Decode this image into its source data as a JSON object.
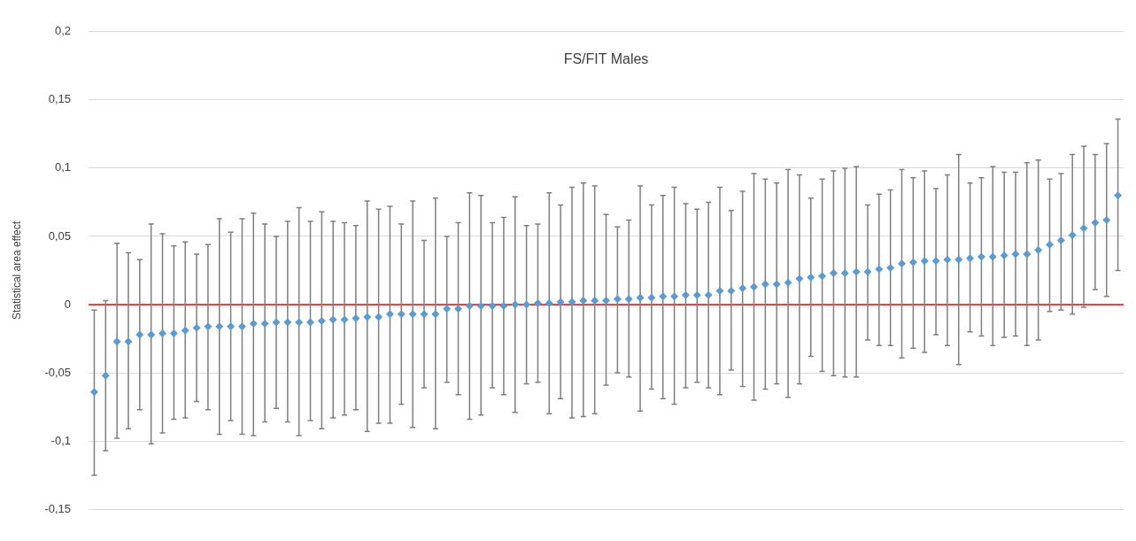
{
  "chart_data": {
    "type": "scatter",
    "title": "FS/FIT Males",
    "ylabel": "Statistical area effect",
    "categories": [
      null,
      null,
      null,
      null,
      null,
      null,
      null,
      null,
      null,
      null,
      null,
      null,
      null,
      null,
      null,
      null,
      null,
      null,
      null,
      null,
      null,
      null,
      null,
      null,
      null,
      null,
      null,
      null,
      null,
      null,
      null,
      null,
      null,
      null,
      null,
      null,
      null,
      null,
      null,
      null,
      null,
      null,
      null,
      null,
      null,
      null,
      null,
      null,
      null,
      null,
      null,
      null,
      null,
      null,
      null,
      null,
      null,
      null,
      null,
      null,
      null,
      null,
      null,
      null,
      null,
      null,
      null,
      null,
      null,
      null,
      null,
      null,
      null,
      null,
      null,
      null,
      null,
      null,
      null,
      null,
      null,
      null,
      null,
      null,
      null,
      null,
      null,
      null,
      null,
      null,
      null
    ],
    "series": [
      {
        "color": "#5b9bd5",
        "values": [
          -0.064,
          -0.052,
          -0.027,
          -0.027,
          -0.022,
          -0.022,
          -0.021,
          -0.021,
          -0.019,
          -0.017,
          -0.016,
          -0.016,
          -0.016,
          -0.016,
          -0.014,
          -0.014,
          -0.013,
          -0.013,
          -0.013,
          -0.013,
          -0.012,
          -0.011,
          -0.011,
          -0.01,
          -0.009,
          -0.009,
          -0.007,
          -0.007,
          -0.007,
          -0.007,
          -0.007,
          -0.003,
          -0.003,
          -0.001,
          -0.001,
          -0.001,
          -0.001,
          0,
          0,
          0.001,
          0.001,
          0.002,
          0.002,
          0.003,
          0.003,
          0.003,
          0.004,
          0.004,
          0.005,
          0.005,
          0.006,
          0.006,
          0.007,
          0.007,
          0.007,
          0.01,
          0.01,
          0.012,
          0.013,
          0.015,
          0.015,
          0.016,
          0.019,
          0.02,
          0.021,
          0.023,
          0.023,
          0.024,
          0.024,
          0.026,
          0.027,
          0.03,
          0.031,
          0.032,
          0.032,
          0.033,
          0.033,
          0.034,
          0.035,
          0.035,
          0.036,
          0.037,
          0.037,
          0.04,
          0.044,
          0.047,
          0.051,
          0.056,
          0.06,
          0.062,
          0.08
        ],
        "errors": [
          [
            -0.125,
            -0.004
          ],
          [
            -0.107,
            0.003
          ],
          [
            -0.098,
            0.045
          ],
          [
            -0.091,
            0.038
          ],
          [
            -0.077,
            0.033
          ],
          [
            -0.102,
            0.059
          ],
          [
            -0.094,
            0.052
          ],
          [
            -0.084,
            0.043
          ],
          [
            -0.083,
            0.046
          ],
          [
            -0.071,
            0.037
          ],
          [
            -0.077,
            0.044
          ],
          [
            -0.095,
            0.063
          ],
          [
            -0.085,
            0.053
          ],
          [
            -0.095,
            0.063
          ],
          [
            -0.096,
            0.067
          ],
          [
            -0.086,
            0.059
          ],
          [
            -0.076,
            0.05
          ],
          [
            -0.086,
            0.061
          ],
          [
            -0.096,
            0.071
          ],
          [
            -0.085,
            0.061
          ],
          [
            -0.091,
            0.068
          ],
          [
            -0.083,
            0.061
          ],
          [
            -0.081,
            0.06
          ],
          [
            -0.077,
            0.058
          ],
          [
            -0.093,
            0.076
          ],
          [
            -0.087,
            0.07
          ],
          [
            -0.087,
            0.072
          ],
          [
            -0.073,
            0.059
          ],
          [
            -0.09,
            0.076
          ],
          [
            -0.061,
            0.047
          ],
          [
            -0.091,
            0.078
          ],
          [
            -0.057,
            0.05
          ],
          [
            -0.066,
            0.06
          ],
          [
            -0.084,
            0.082
          ],
          [
            -0.081,
            0.08
          ],
          [
            -0.061,
            0.06
          ],
          [
            -0.066,
            0.064
          ],
          [
            -0.079,
            0.079
          ],
          [
            -0.058,
            0.058
          ],
          [
            -0.057,
            0.059
          ],
          [
            -0.08,
            0.082
          ],
          [
            -0.069,
            0.073
          ],
          [
            -0.083,
            0.086
          ],
          [
            -0.082,
            0.089
          ],
          [
            -0.08,
            0.087
          ],
          [
            -0.059,
            0.066
          ],
          [
            -0.05,
            0.057
          ],
          [
            -0.053,
            0.062
          ],
          [
            -0.078,
            0.087
          ],
          [
            -0.062,
            0.073
          ],
          [
            -0.069,
            0.08
          ],
          [
            -0.073,
            0.086
          ],
          [
            -0.061,
            0.074
          ],
          [
            -0.057,
            0.07
          ],
          [
            -0.061,
            0.075
          ],
          [
            -0.066,
            0.086
          ],
          [
            -0.048,
            0.069
          ],
          [
            -0.06,
            0.083
          ],
          [
            -0.07,
            0.096
          ],
          [
            -0.062,
            0.092
          ],
          [
            -0.058,
            0.089
          ],
          [
            -0.068,
            0.099
          ],
          [
            -0.058,
            0.095
          ],
          [
            -0.038,
            0.078
          ],
          [
            -0.049,
            0.092
          ],
          [
            -0.052,
            0.098
          ],
          [
            -0.053,
            0.1
          ],
          [
            -0.053,
            0.101
          ],
          [
            -0.026,
            0.073
          ],
          [
            -0.03,
            0.081
          ],
          [
            -0.03,
            0.084
          ],
          [
            -0.039,
            0.099
          ],
          [
            -0.032,
            0.093
          ],
          [
            -0.035,
            0.098
          ],
          [
            -0.022,
            0.085
          ],
          [
            -0.03,
            0.095
          ],
          [
            -0.044,
            0.11
          ],
          [
            -0.02,
            0.089
          ],
          [
            -0.023,
            0.093
          ],
          [
            -0.03,
            0.101
          ],
          [
            -0.024,
            0.097
          ],
          [
            -0.023,
            0.097
          ],
          [
            -0.03,
            0.104
          ],
          [
            -0.026,
            0.106
          ],
          [
            -0.005,
            0.092
          ],
          [
            -0.004,
            0.096
          ],
          [
            -0.007,
            0.11
          ],
          [
            -0.002,
            0.116
          ],
          [
            0.011,
            0.11
          ],
          [
            0.006,
            0.118
          ],
          [
            0.025,
            0.136
          ]
        ]
      }
    ],
    "ylim": [
      -0.15,
      0.2
    ],
    "yticks": [
      {
        "value": -0.15,
        "label": "-0,15"
      },
      {
        "value": -0.1,
        "label": "-0,1"
      },
      {
        "value": -0.05,
        "label": "-0,05"
      },
      0,
      {
        "value": 0.05,
        "label": "0,05"
      },
      {
        "value": 0.1,
        "label": "0,1"
      },
      {
        "value": 0.15,
        "label": "0,15"
      },
      {
        "value": 0.2,
        "label": "0,2"
      }
    ],
    "ref_lines": [
      {
        "axis": "y",
        "value": 0,
        "color": "#ff0000"
      }
    ],
    "grid": "y",
    "legend": false,
    "marker": "diamond",
    "tick_labels": "y"
  }
}
